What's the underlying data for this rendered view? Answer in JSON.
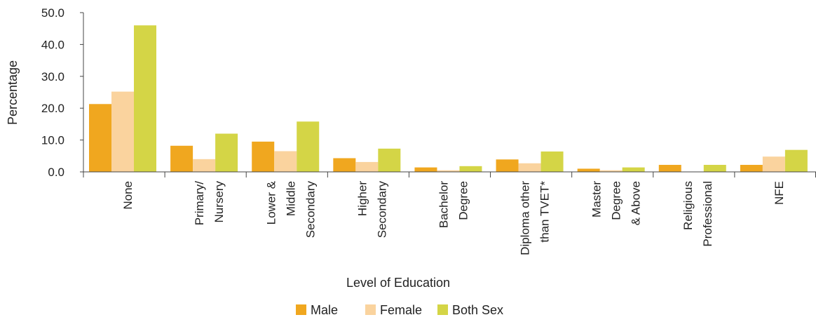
{
  "chart_data": {
    "type": "bar",
    "xlabel": "Level of Education",
    "ylabel": "Percentage",
    "ylim": [
      0,
      50
    ],
    "yticks": [
      "0.0",
      "10.0",
      "20.0",
      "30.0",
      "40.0",
      "50.0"
    ],
    "grid": false,
    "legend_position": "bottom",
    "categories": [
      [
        "None"
      ],
      [
        "Primary/",
        "Nursery"
      ],
      [
        "Lower &",
        "Middle",
        "Secondary"
      ],
      [
        "Higher",
        "Secondary"
      ],
      [
        "Bachelor",
        "Degree"
      ],
      [
        "Diploma other",
        "than TVET*"
      ],
      [
        "Master",
        "Degree",
        "& Above"
      ],
      [
        "Religious",
        "Professional"
      ],
      [
        "NFE"
      ]
    ],
    "series": [
      {
        "name": "Male",
        "color": "#f0a71f",
        "values": [
          21.3,
          8.2,
          9.5,
          4.3,
          1.4,
          3.9,
          1.0,
          2.2,
          2.2
        ]
      },
      {
        "name": "Female",
        "color": "#fad39e",
        "values": [
          25.2,
          4.0,
          6.5,
          3.1,
          0.5,
          2.7,
          0.5,
          0.0,
          4.8
        ]
      },
      {
        "name": "Both Sex",
        "color": "#d4d546",
        "values": [
          46.0,
          12.0,
          15.8,
          7.3,
          1.8,
          6.4,
          1.4,
          2.2,
          6.9
        ]
      }
    ]
  }
}
